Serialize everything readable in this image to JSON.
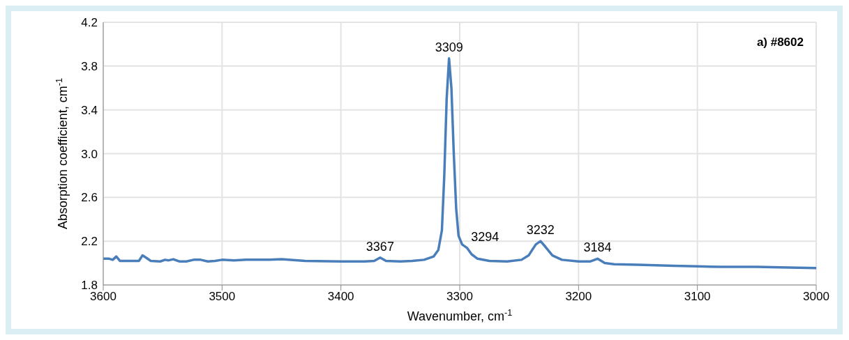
{
  "chart_data": {
    "type": "line",
    "title": "a) #8602",
    "xlabel": "Wavenumber, cm$^{-1}$",
    "ylabel": "Absorption coefficient, cm$^{-1}$",
    "xlim": [
      3600,
      3000
    ],
    "xticks": [
      3600,
      3500,
      3400,
      3300,
      3200,
      3100,
      3000
    ],
    "ylim": [
      1.8,
      4.2
    ],
    "yticks": [
      {
        "value": 1.8,
        "label": "1.8"
      },
      {
        "value": 2.2,
        "label": "2.2"
      },
      {
        "value": 2.6,
        "label": "2.6"
      },
      {
        "value": 3.0,
        "label": "3.0"
      },
      {
        "value": 3.4,
        "label": "3.4"
      },
      {
        "value": 3.8,
        "label": "3.8"
      },
      {
        "value": 4.2,
        "label": "4.2"
      }
    ],
    "grid": true,
    "marker": "none",
    "line_style": "solid",
    "series": [
      {
        "color": "#4a7ebb",
        "x": [
          3600,
          3595,
          3592,
          3589,
          3586,
          3575,
          3570,
          3567,
          3564,
          3560,
          3552,
          3548,
          3545,
          3541,
          3536,
          3530,
          3524,
          3518,
          3512,
          3506,
          3500,
          3490,
          3480,
          3460,
          3450,
          3430,
          3400,
          3380,
          3372,
          3367,
          3362,
          3350,
          3340,
          3330,
          3322,
          3318,
          3315,
          3313,
          3311,
          3309,
          3307,
          3305,
          3303,
          3301,
          3298,
          3294,
          3290,
          3285,
          3275,
          3260,
          3248,
          3242,
          3236,
          3232,
          3228,
          3222,
          3214,
          3200,
          3190,
          3184,
          3178,
          3170,
          3150,
          3120,
          3100,
          3080,
          3050,
          3030,
          3000
        ],
        "values": [
          2.04,
          2.04,
          2.03,
          2.06,
          2.02,
          2.02,
          2.02,
          2.07,
          2.05,
          2.02,
          2.015,
          2.03,
          2.025,
          2.035,
          2.015,
          2.015,
          2.03,
          2.03,
          2.015,
          2.02,
          2.03,
          2.025,
          2.03,
          2.03,
          2.035,
          2.02,
          2.015,
          2.015,
          2.02,
          2.05,
          2.02,
          2.015,
          2.02,
          2.03,
          2.06,
          2.12,
          2.3,
          2.8,
          3.5,
          3.87,
          3.6,
          3.0,
          2.5,
          2.25,
          2.17,
          2.14,
          2.08,
          2.04,
          2.02,
          2.015,
          2.03,
          2.07,
          2.17,
          2.2,
          2.15,
          2.07,
          2.03,
          2.015,
          2.015,
          2.04,
          2.0,
          1.99,
          1.985,
          1.975,
          1.97,
          1.965,
          1.965,
          1.96,
          1.955
        ]
      }
    ],
    "annotations": [
      {
        "text": "3309",
        "x": 3309,
        "y": 3.87
      },
      {
        "text": "3367",
        "x": 3367,
        "y": 2.05
      },
      {
        "text": "3294",
        "x": 3294,
        "y": 2.14
      },
      {
        "text": "3232",
        "x": 3232,
        "y": 2.2
      },
      {
        "text": "3184",
        "x": 3184,
        "y": 2.04
      }
    ]
  }
}
